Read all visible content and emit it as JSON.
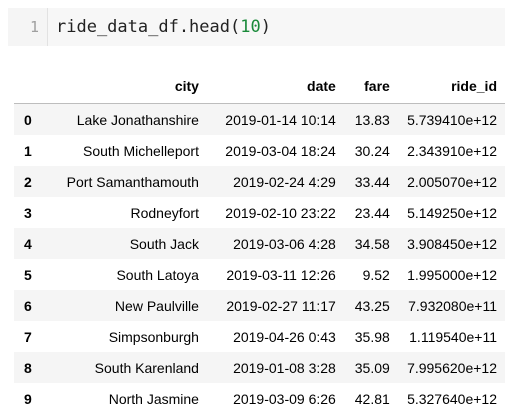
{
  "cell": {
    "line_number": "1",
    "code_prefix": "ride_data_df.head(",
    "code_arg": "10",
    "code_suffix": ")"
  },
  "table": {
    "columns": [
      "",
      "city",
      "date",
      "fare",
      "ride_id"
    ],
    "rows": [
      {
        "idx": "0",
        "city": "Lake Jonathanshire",
        "date": "2019-01-14 10:14",
        "fare": "13.83",
        "ride_id": "5.739410e+12"
      },
      {
        "idx": "1",
        "city": "South Michelleport",
        "date": "2019-03-04 18:24",
        "fare": "30.24",
        "ride_id": "2.343910e+12"
      },
      {
        "idx": "2",
        "city": "Port Samanthamouth",
        "date": "2019-02-24 4:29",
        "fare": "33.44",
        "ride_id": "2.005070e+12"
      },
      {
        "idx": "3",
        "city": "Rodneyfort",
        "date": "2019-02-10 23:22",
        "fare": "23.44",
        "ride_id": "5.149250e+12"
      },
      {
        "idx": "4",
        "city": "South Jack",
        "date": "2019-03-06 4:28",
        "fare": "34.58",
        "ride_id": "3.908450e+12"
      },
      {
        "idx": "5",
        "city": "South Latoya",
        "date": "2019-03-11 12:26",
        "fare": "9.52",
        "ride_id": "1.995000e+12"
      },
      {
        "idx": "6",
        "city": "New Paulville",
        "date": "2019-02-27 11:17",
        "fare": "43.25",
        "ride_id": "7.932080e+11"
      },
      {
        "idx": "7",
        "city": "Simpsonburgh",
        "date": "2019-04-26 0:43",
        "fare": "35.98",
        "ride_id": "1.119540e+11"
      },
      {
        "idx": "8",
        "city": "South Karenland",
        "date": "2019-01-08 3:28",
        "fare": "35.09",
        "ride_id": "7.995620e+12"
      },
      {
        "idx": "9",
        "city": "North Jasmine",
        "date": "2019-03-09 6:26",
        "fare": "42.81",
        "ride_id": "5.327640e+12"
      }
    ]
  }
}
